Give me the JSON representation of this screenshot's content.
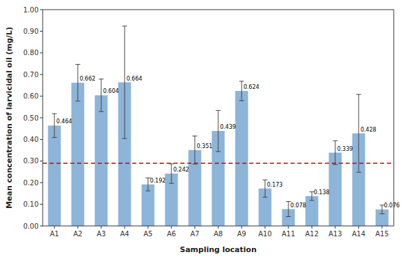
{
  "chart_data": {
    "type": "bar",
    "xlabel": "Sampling location",
    "ylabel": "Mean concentration of larvicidal oil (mg/L)",
    "categories": [
      "A1",
      "A2",
      "A3",
      "A4",
      "A5",
      "A6",
      "A7",
      "A8",
      "A9",
      "A10",
      "A11",
      "A12",
      "A13",
      "A14",
      "A15"
    ],
    "values": [
      0.464,
      0.662,
      0.604,
      0.664,
      0.192,
      0.242,
      0.351,
      0.439,
      0.624,
      0.173,
      0.078,
      0.138,
      0.339,
      0.428,
      0.076
    ],
    "errors": [
      0.055,
      0.085,
      0.075,
      0.26,
      0.03,
      0.045,
      0.065,
      0.095,
      0.045,
      0.04,
      0.035,
      0.02,
      0.055,
      0.18,
      0.02
    ],
    "color": "#8DB4D9",
    "error_color": "#444444",
    "reference_lines": [
      {
        "value": 0.29,
        "color": "#CC0000",
        "line_style": "dashed"
      }
    ],
    "ylim": [
      0.0,
      1.0
    ],
    "yticks": [
      {
        "value": 0.0,
        "label": "0.00"
      },
      {
        "value": 0.1,
        "label": "0.10"
      },
      {
        "value": 0.2,
        "label": "0.20"
      },
      {
        "value": 0.3,
        "label": "0.30"
      },
      {
        "value": 0.4,
        "label": "0.40"
      },
      {
        "value": 0.5,
        "label": "0.50"
      },
      {
        "value": 0.6,
        "label": "0.60"
      },
      {
        "value": 0.7,
        "label": "0.70"
      },
      {
        "value": 0.8,
        "label": "0.80"
      },
      {
        "value": 0.9,
        "label": "0.90"
      },
      {
        "value": 1.0,
        "label": "1.00"
      }
    ],
    "data_labels": true,
    "grid": false
  }
}
